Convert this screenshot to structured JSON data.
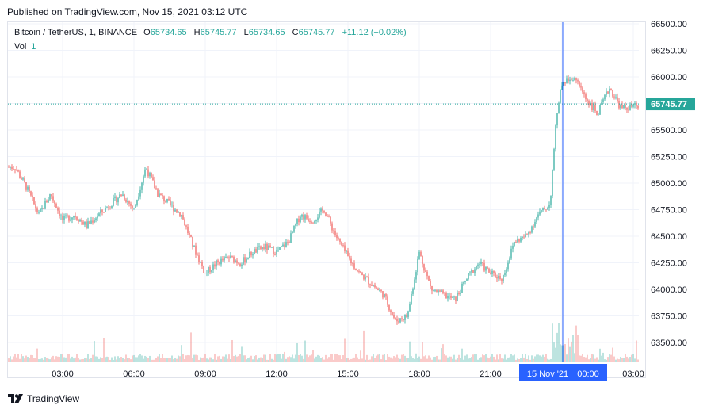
{
  "header": {
    "published_text": "Published on TradingView.com, Nov 15, 2021 03:12 UTC"
  },
  "legend": {
    "symbol": "Bitcoin / TetherUS, 1, BINANCE",
    "o_label": "O",
    "o_value": "65734.65",
    "h_label": "H",
    "h_value": "65745.77",
    "l_label": "L",
    "l_value": "65734.65",
    "c_label": "C",
    "c_value": "65745.77",
    "change": "+11.12 (+0.02%)",
    "vol_label": "Vol",
    "vol_value": "1"
  },
  "footer": {
    "brand": "TradingView"
  },
  "colors": {
    "up": "#26a69a",
    "down": "#ef5350",
    "crosshair": "#2962ff",
    "price_tag": "#26a69a",
    "axis_text": "#131722"
  },
  "chart_data": {
    "type": "candlestick",
    "symbol": "BTCUSDT",
    "interval": "1",
    "ylim": [
      63300,
      66500
    ],
    "y_ticks": [
      "66500.00",
      "66250.00",
      "66000.00",
      "65750.00",
      "65500.00",
      "65250.00",
      "65000.00",
      "64750.00",
      "64500.00",
      "64250.00",
      "64000.00",
      "63750.00",
      "63500.00"
    ],
    "x_ticks": [
      "03:00",
      "06:00",
      "09:00",
      "12:00",
      "15:00",
      "18:00",
      "21:00",
      "00:00",
      "03:00"
    ],
    "last_price": "65745.77",
    "crosshair_date": "15 Nov '21",
    "crosshair_time": "00:00",
    "grid": true,
    "price_path": [
      {
        "t": "01:00",
        "p": 65150
      },
      {
        "t": "01:30",
        "p": 64950
      },
      {
        "t": "02:00",
        "p": 64700
      },
      {
        "t": "02:30",
        "p": 64900
      },
      {
        "t": "03:00",
        "p": 64650
      },
      {
        "t": "03:30",
        "p": 64700
      },
      {
        "t": "04:00",
        "p": 64600
      },
      {
        "t": "04:30",
        "p": 64700
      },
      {
        "t": "05:00",
        "p": 64800
      },
      {
        "t": "05:30",
        "p": 64900
      },
      {
        "t": "06:00",
        "p": 64750
      },
      {
        "t": "06:30",
        "p": 65150
      },
      {
        "t": "07:00",
        "p": 64900
      },
      {
        "t": "07:30",
        "p": 64800
      },
      {
        "t": "08:00",
        "p": 64700
      },
      {
        "t": "08:30",
        "p": 64400
      },
      {
        "t": "09:00",
        "p": 64150
      },
      {
        "t": "09:30",
        "p": 64250
      },
      {
        "t": "10:00",
        "p": 64300
      },
      {
        "t": "10:30",
        "p": 64250
      },
      {
        "t": "11:00",
        "p": 64350
      },
      {
        "t": "11:30",
        "p": 64400
      },
      {
        "t": "12:00",
        "p": 64350
      },
      {
        "t": "12:30",
        "p": 64450
      },
      {
        "t": "13:00",
        "p": 64700
      },
      {
        "t": "13:30",
        "p": 64650
      },
      {
        "t": "14:00",
        "p": 64750
      },
      {
        "t": "14:30",
        "p": 64500
      },
      {
        "t": "15:00",
        "p": 64300
      },
      {
        "t": "15:30",
        "p": 64150
      },
      {
        "t": "16:00",
        "p": 64050
      },
      {
        "t": "16:30",
        "p": 63950
      },
      {
        "t": "17:00",
        "p": 63700
      },
      {
        "t": "17:30",
        "p": 63750
      },
      {
        "t": "18:00",
        "p": 64350
      },
      {
        "t": "18:30",
        "p": 64000
      },
      {
        "t": "19:00",
        "p": 63950
      },
      {
        "t": "19:30",
        "p": 63900
      },
      {
        "t": "20:00",
        "p": 64100
      },
      {
        "t": "20:30",
        "p": 64250
      },
      {
        "t": "21:00",
        "p": 64150
      },
      {
        "t": "21:30",
        "p": 64100
      },
      {
        "t": "22:00",
        "p": 64450
      },
      {
        "t": "22:30",
        "p": 64500
      },
      {
        "t": "23:00",
        "p": 64700
      },
      {
        "t": "23:30",
        "p": 64800
      },
      {
        "t": "23:45",
        "p": 65600
      },
      {
        "t": "00:00",
        "p": 65950
      },
      {
        "t": "00:30",
        "p": 66000
      },
      {
        "t": "01:00",
        "p": 65800
      },
      {
        "t": "01:30",
        "p": 65650
      },
      {
        "t": "02:00",
        "p": 65900
      },
      {
        "t": "02:30",
        "p": 65700
      },
      {
        "t": "03:00",
        "p": 65720
      }
    ]
  }
}
